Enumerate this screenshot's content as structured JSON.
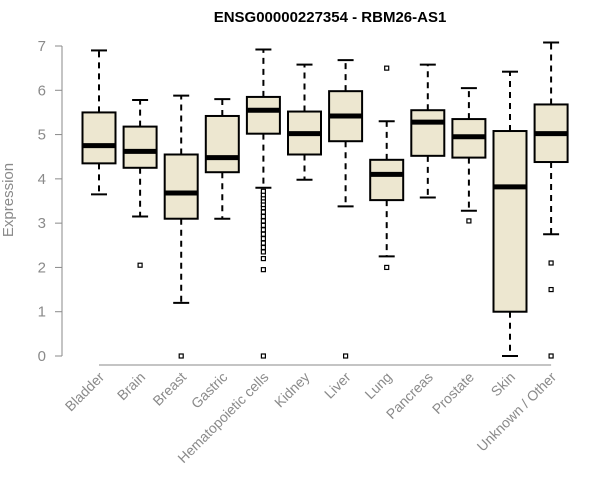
{
  "chart_data": {
    "type": "boxplot",
    "title": "ENSG00000227354 - RBM26-AS1",
    "xlabel": "",
    "ylabel": "Expression",
    "ylim": [
      0,
      7
    ],
    "yticks": [
      "0",
      "1",
      "2",
      "3",
      "4",
      "5",
      "6",
      "7"
    ],
    "colors": {
      "box_fill": "#ede7d0",
      "box_stroke": "#000000",
      "axis": "#8a8a8a"
    },
    "categories": [
      "Bladder",
      "Brain",
      "Breast",
      "Gastric",
      "Hematopoietic cells",
      "Kidney",
      "Liver",
      "Lung",
      "Pancreas",
      "Prostate",
      "Skin",
      "Unknown / Other"
    ],
    "boxes": [
      {
        "name": "Bladder",
        "whisker_low": 3.65,
        "q1": 4.35,
        "median": 4.75,
        "q3": 5.5,
        "whisker_high": 6.9,
        "outliers": []
      },
      {
        "name": "Brain",
        "whisker_low": 3.15,
        "q1": 4.25,
        "median": 4.62,
        "q3": 5.18,
        "whisker_high": 5.78,
        "outliers": [
          2.05
        ]
      },
      {
        "name": "Breast",
        "whisker_low": 1.2,
        "q1": 3.1,
        "median": 3.68,
        "q3": 4.55,
        "whisker_high": 5.88,
        "outliers": [
          0
        ]
      },
      {
        "name": "Gastric",
        "whisker_low": 3.1,
        "q1": 4.15,
        "median": 4.48,
        "q3": 5.42,
        "whisker_high": 5.8,
        "outliers": []
      },
      {
        "name": "Hematopoietic cells",
        "whisker_low": 3.8,
        "q1": 5.02,
        "median": 5.55,
        "q3": 5.85,
        "whisker_high": 6.92,
        "outliers": [
          0,
          1.95,
          2.2,
          2.35,
          2.45,
          2.55,
          2.65,
          2.75,
          2.85,
          2.95,
          3.05,
          3.15,
          3.25,
          3.35,
          3.42,
          3.5,
          3.57,
          3.64,
          3.72
        ]
      },
      {
        "name": "Kidney",
        "whisker_low": 3.98,
        "q1": 4.55,
        "median": 5.02,
        "q3": 5.52,
        "whisker_high": 6.58,
        "outliers": []
      },
      {
        "name": "Liver",
        "whisker_low": 3.38,
        "q1": 4.85,
        "median": 5.42,
        "q3": 5.98,
        "whisker_high": 6.68,
        "outliers": [
          0
        ]
      },
      {
        "name": "Lung",
        "whisker_low": 2.25,
        "q1": 3.52,
        "median": 4.1,
        "q3": 4.43,
        "whisker_high": 5.3,
        "outliers": [
          2.0,
          6.5
        ]
      },
      {
        "name": "Pancreas",
        "whisker_low": 3.58,
        "q1": 4.52,
        "median": 5.28,
        "q3": 5.55,
        "whisker_high": 6.58,
        "outliers": []
      },
      {
        "name": "Prostate",
        "whisker_low": 3.28,
        "q1": 4.48,
        "median": 4.95,
        "q3": 5.35,
        "whisker_high": 6.05,
        "outliers": [
          3.05
        ]
      },
      {
        "name": "Skin",
        "whisker_low": 0.0,
        "q1": 1.0,
        "median": 3.82,
        "q3": 5.08,
        "whisker_high": 6.42,
        "outliers": []
      },
      {
        "name": "Unknown / Other",
        "whisker_low": 2.75,
        "q1": 4.38,
        "median": 5.02,
        "q3": 5.68,
        "whisker_high": 7.08,
        "outliers": [
          0,
          1.5,
          2.1
        ]
      }
    ]
  }
}
